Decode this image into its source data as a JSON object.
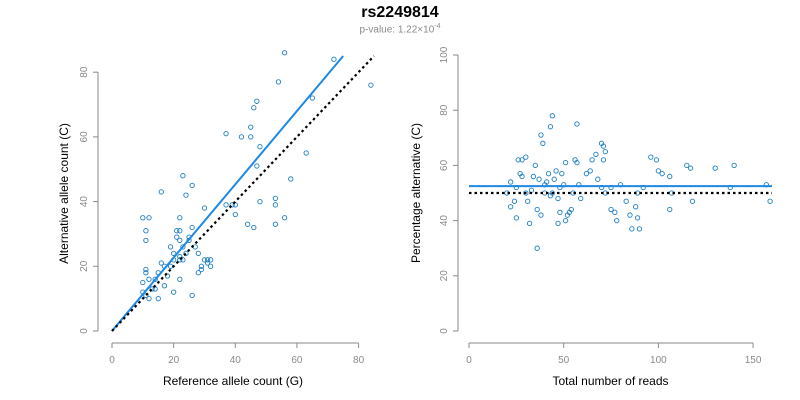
{
  "title": "rs2249814",
  "subtitle": {
    "prefix": "p-value: 1.22×10",
    "exponent": "-4"
  },
  "colors": {
    "points": "#1f7fc4",
    "fit_line": "#1e88e5",
    "reference_line": "#000000",
    "axis": "#8a8a8a"
  },
  "chart_data": [
    {
      "type": "scatter",
      "xlabel": "Reference allele count (G)",
      "ylabel": "Alternative allele count (C)",
      "xlim": [
        0,
        85
      ],
      "ylim": [
        0,
        85
      ],
      "xticks": [
        0,
        20,
        40,
        60,
        80
      ],
      "yticks": [
        0,
        20,
        40,
        60,
        80
      ],
      "lines": [
        {
          "style": "solid",
          "color": "#1e88e5",
          "x": [
            0,
            75
          ],
          "y": [
            0,
            85
          ]
        },
        {
          "style": "dotted",
          "color": "#000000",
          "x": [
            0,
            85
          ],
          "y": [
            0,
            85
          ]
        }
      ],
      "points": [
        [
          10,
          35
        ],
        [
          11,
          31
        ],
        [
          11,
          28
        ],
        [
          12,
          35
        ],
        [
          11,
          19
        ],
        [
          11,
          18
        ],
        [
          12,
          16
        ],
        [
          10,
          15
        ],
        [
          10,
          12
        ],
        [
          11,
          11
        ],
        [
          12,
          10
        ],
        [
          13,
          13
        ],
        [
          14,
          13
        ],
        [
          14,
          16
        ],
        [
          15,
          18
        ],
        [
          16,
          43
        ],
        [
          16,
          21
        ],
        [
          15,
          10
        ],
        [
          17,
          14
        ],
        [
          17,
          20
        ],
        [
          19,
          26
        ],
        [
          19,
          20
        ],
        [
          18,
          17
        ],
        [
          20,
          24
        ],
        [
          20,
          22
        ],
        [
          20,
          12
        ],
        [
          21,
          29
        ],
        [
          21,
          31
        ],
        [
          22,
          35
        ],
        [
          22,
          31
        ],
        [
          22,
          28
        ],
        [
          22,
          23
        ],
        [
          22,
          22
        ],
        [
          22,
          16
        ],
        [
          23,
          48
        ],
        [
          23,
          26
        ],
        [
          23,
          22
        ],
        [
          24,
          42
        ],
        [
          24,
          24
        ],
        [
          25,
          28
        ],
        [
          25,
          29
        ],
        [
          26,
          45
        ],
        [
          26,
          11
        ],
        [
          26,
          32
        ],
        [
          27,
          26
        ],
        [
          28,
          24
        ],
        [
          28,
          18
        ],
        [
          29,
          20
        ],
        [
          29,
          19
        ],
        [
          30,
          38
        ],
        [
          30,
          22
        ],
        [
          31,
          22
        ],
        [
          31,
          21
        ],
        [
          32,
          20
        ],
        [
          32,
          22
        ],
        [
          37,
          61
        ],
        [
          37,
          39
        ],
        [
          39,
          39
        ],
        [
          42,
          60
        ],
        [
          44,
          33
        ],
        [
          45,
          63
        ],
        [
          45,
          60
        ],
        [
          46,
          69
        ],
        [
          46,
          32
        ],
        [
          47,
          71
        ],
        [
          47,
          51
        ],
        [
          48,
          40
        ],
        [
          48,
          57
        ],
        [
          53,
          39
        ],
        [
          53,
          33
        ],
        [
          53,
          41
        ],
        [
          54,
          77
        ],
        [
          56,
          86
        ],
        [
          56,
          35
        ],
        [
          58,
          47
        ],
        [
          63,
          55
        ],
        [
          65,
          72
        ],
        [
          72,
          84
        ],
        [
          84,
          76
        ],
        [
          40,
          39
        ],
        [
          40,
          36
        ]
      ]
    },
    {
      "type": "scatter",
      "xlabel": "Total number of reads",
      "ylabel": "Percentage alternative (C)",
      "xlim": [
        0,
        160
      ],
      "ylim": [
        0,
        100
      ],
      "xticks": [
        0,
        50,
        100,
        150
      ],
      "yticks": [
        0,
        20,
        40,
        60,
        80,
        100
      ],
      "lines": [
        {
          "style": "solid",
          "color": "#1e88e5",
          "x": [
            0,
            160
          ],
          "y": [
            52.5,
            52.5
          ]
        },
        {
          "style": "dotted",
          "color": "#000000",
          "x": [
            0,
            160
          ],
          "y": [
            50,
            50
          ]
        }
      ],
      "points": [
        [
          20,
          50
        ],
        [
          22,
          54
        ],
        [
          22,
          45
        ],
        [
          24,
          47
        ],
        [
          25,
          41
        ],
        [
          25,
          52
        ],
        [
          26,
          62
        ],
        [
          27,
          57
        ],
        [
          28,
          56
        ],
        [
          28,
          62
        ],
        [
          30,
          63
        ],
        [
          30,
          50
        ],
        [
          31,
          47
        ],
        [
          32,
          39
        ],
        [
          33,
          51
        ],
        [
          34,
          56
        ],
        [
          35,
          60
        ],
        [
          36,
          44
        ],
        [
          36,
          30
        ],
        [
          37,
          55
        ],
        [
          38,
          71
        ],
        [
          38,
          42
        ],
        [
          39,
          68
        ],
        [
          40,
          53
        ],
        [
          40,
          50
        ],
        [
          41,
          54
        ],
        [
          42,
          57
        ],
        [
          43,
          74
        ],
        [
          43,
          49
        ],
        [
          44,
          78
        ],
        [
          44,
          50
        ],
        [
          45,
          55
        ],
        [
          46,
          58
        ],
        [
          47,
          48
        ],
        [
          47,
          39
        ],
        [
          48,
          43
        ],
        [
          48,
          52
        ],
        [
          49,
          57
        ],
        [
          50,
          53
        ],
        [
          51,
          61
        ],
        [
          51,
          40
        ],
        [
          52,
          42
        ],
        [
          53,
          43
        ],
        [
          54,
          44
        ],
        [
          55,
          50
        ],
        [
          56,
          62
        ],
        [
          57,
          61
        ],
        [
          57,
          75
        ],
        [
          58,
          53
        ],
        [
          59,
          48
        ],
        [
          62,
          57
        ],
        [
          64,
          58
        ],
        [
          65,
          62
        ],
        [
          67,
          64
        ],
        [
          68,
          55
        ],
        [
          70,
          68
        ],
        [
          70,
          52
        ],
        [
          71,
          62
        ],
        [
          71,
          67
        ],
        [
          72,
          50
        ],
        [
          72,
          65
        ],
        [
          75,
          52
        ],
        [
          75,
          44
        ],
        [
          77,
          43
        ],
        [
          78,
          40
        ],
        [
          80,
          53
        ],
        [
          83,
          47
        ],
        [
          85,
          42
        ],
        [
          86,
          37
        ],
        [
          88,
          45
        ],
        [
          89,
          50
        ],
        [
          89,
          41
        ],
        [
          90,
          37
        ],
        [
          92,
          52
        ],
        [
          96,
          63
        ],
        [
          99,
          62
        ],
        [
          100,
          58
        ],
        [
          102,
          57
        ],
        [
          106,
          56
        ],
        [
          106,
          44
        ],
        [
          107,
          50
        ],
        [
          115,
          60
        ],
        [
          117,
          59
        ],
        [
          118,
          47
        ],
        [
          130,
          59
        ],
        [
          138,
          52
        ],
        [
          140,
          60
        ],
        [
          157,
          53
        ],
        [
          159,
          47
        ]
      ]
    }
  ]
}
